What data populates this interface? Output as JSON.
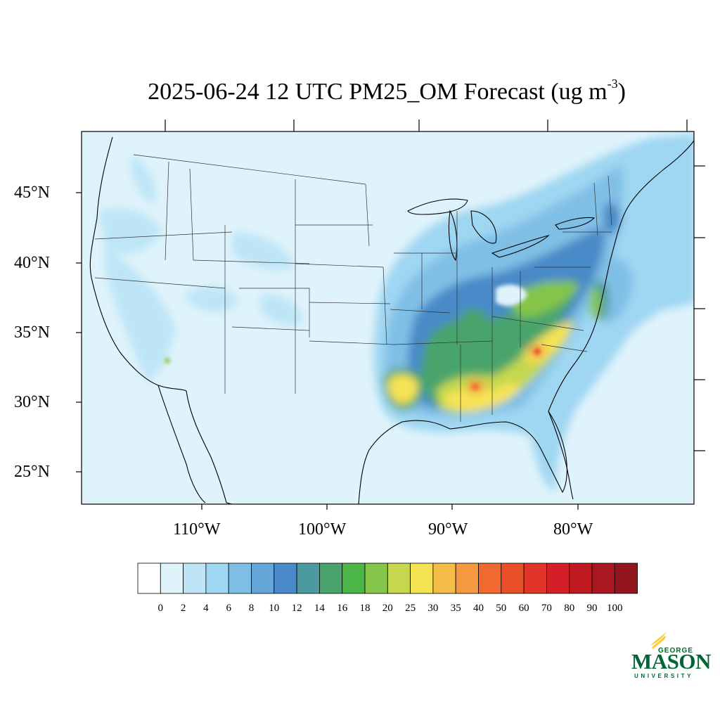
{
  "title": {
    "text": "2025-06-24 12 UTC PM25_OM Forecast (ug m",
    "exponent": "-3",
    "close": ")"
  },
  "map": {
    "background": "#dff3fb",
    "lat_labels": [
      {
        "text": "45°N",
        "lat": 45
      },
      {
        "text": "40°N",
        "lat": 40
      },
      {
        "text": "35°N",
        "lat": 35
      },
      {
        "text": "30°N",
        "lat": 30
      },
      {
        "text": "25°N",
        "lat": 25
      }
    ],
    "lon_labels": [
      {
        "text": "110°W",
        "lon": -110
      },
      {
        "text": "100°W",
        "lon": -100
      },
      {
        "text": "90°W",
        "lon": -90
      },
      {
        "text": "80°W",
        "lon": -80
      }
    ]
  },
  "colorbar": {
    "colors": [
      "#ffffff",
      "#dff3fb",
      "#bde5f6",
      "#9fd6f2",
      "#80bfe5",
      "#64a6d8",
      "#4a8ac8",
      "#4c9aa0",
      "#48a46c",
      "#4bb548",
      "#84c54a",
      "#c4d74e",
      "#f6e354",
      "#f6bc48",
      "#f49940",
      "#f06a30",
      "#e9502a",
      "#e03528",
      "#d41f28",
      "#bf1a22",
      "#a9171f",
      "#92151c"
    ],
    "labels": [
      "0",
      "2",
      "4",
      "6",
      "8",
      "10",
      "12",
      "14",
      "16",
      "18",
      "20",
      "25",
      "30",
      "35",
      "40",
      "50",
      "60",
      "70",
      "80",
      "90",
      "100"
    ]
  },
  "logo": {
    "line1": "GEORGE",
    "line2": "MASON",
    "line3": "UNIVERSITY",
    "green": "#006633",
    "gold": "#ffcc33"
  }
}
